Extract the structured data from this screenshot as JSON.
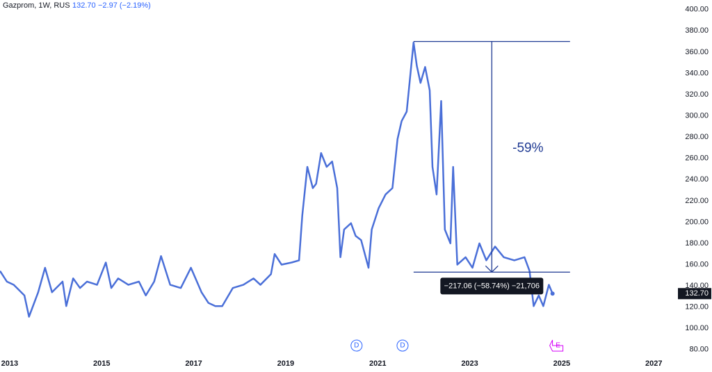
{
  "chart_data": {
    "type": "line",
    "title": "Gazprom, 1W, RUS",
    "last": "132.70",
    "change": "−2.97 (−2.19%)",
    "x": [
      2012.79,
      2012.94,
      2013.09,
      2013.32,
      2013.42,
      2013.62,
      2013.77,
      2013.92,
      2014.15,
      2014.23,
      2014.38,
      2014.53,
      2014.68,
      2014.9,
      2015.09,
      2015.21,
      2015.36,
      2015.58,
      2015.81,
      2015.96,
      2016.14,
      2016.29,
      2016.49,
      2016.72,
      2016.94,
      2017.17,
      2017.32,
      2017.47,
      2017.62,
      2017.85,
      2018.08,
      2018.3,
      2018.45,
      2018.68,
      2018.76,
      2018.91,
      2019.13,
      2019.29,
      2019.36,
      2019.47,
      2019.59,
      2019.66,
      2019.77,
      2019.89,
      2020.01,
      2020.12,
      2020.19,
      2020.27,
      2020.42,
      2020.52,
      2020.64,
      2020.8,
      2020.87,
      2021.02,
      2021.17,
      2021.32,
      2021.43,
      2021.52,
      2021.63,
      2021.78,
      2021.85,
      2021.93,
      2022.03,
      2022.13,
      2022.19,
      2022.28,
      2022.38,
      2022.46,
      2022.58,
      2022.64,
      2022.73,
      2022.91,
      2023.06,
      2023.21,
      2023.36,
      2023.55,
      2023.74,
      2023.97,
      2024.19,
      2024.3,
      2024.39,
      2024.5,
      2024.6,
      2024.72,
      2024.8
    ],
    "series": [
      {
        "name": "Gazprom",
        "color": "#4a6fd8",
        "values": [
          154,
          144,
          141,
          131,
          111,
          134,
          157,
          134,
          144,
          121,
          147,
          138,
          144,
          141,
          162,
          138,
          147,
          141,
          144,
          131,
          144,
          168,
          141,
          138,
          157,
          134,
          124,
          121,
          121,
          138,
          141,
          147,
          141,
          151,
          170,
          160,
          162,
          164,
          206,
          252,
          232,
          236,
          265,
          252,
          257,
          232,
          167,
          193,
          199,
          187,
          183,
          157,
          193,
          213,
          226,
          232,
          278,
          295,
          304,
          369,
          347,
          331,
          346,
          324,
          252,
          226,
          314,
          193,
          180,
          252,
          160,
          167,
          157,
          180,
          164,
          177,
          167,
          164,
          167,
          154,
          121,
          131,
          121,
          141,
          132.7
        ]
      }
    ],
    "last_price_label": "132.70",
    "xlim": [
      2012.79,
      2027.45
    ],
    "xticks": [
      2013,
      2015,
      2017,
      2019,
      2021,
      2023,
      2025,
      2027
    ],
    "ylim": [
      74,
      409
    ],
    "yticks": [
      {
        "value": 80,
        "label": "80.00"
      },
      {
        "value": 100,
        "label": "100.00"
      },
      {
        "value": 120,
        "label": "120.00"
      },
      {
        "value": 140,
        "label": "140.00"
      },
      {
        "value": 160,
        "label": "160.00"
      },
      {
        "value": 180,
        "label": "180.00"
      },
      {
        "value": 200,
        "label": "200.00"
      },
      {
        "value": 220,
        "label": "220.00"
      },
      {
        "value": 240,
        "label": "240.00"
      },
      {
        "value": 260,
        "label": "260.00"
      },
      {
        "value": 280,
        "label": "280.00"
      },
      {
        "value": 300,
        "label": "300.00"
      },
      {
        "value": 320,
        "label": "320.00"
      },
      {
        "value": 340,
        "label": "340.00"
      },
      {
        "value": 360,
        "label": "360.00"
      },
      {
        "value": 380,
        "label": "380.00"
      },
      {
        "value": 400,
        "label": "400.00"
      }
    ],
    "measure": {
      "x": [
        2021.78,
        2025.18
      ],
      "from": 370,
      "to": 152.94,
      "color": "#1f3a93",
      "label": "−217.06 (−58.74%) −21,706",
      "percent_label": "-59%"
    },
    "events": [
      {
        "x": 2020.54,
        "label": "D",
        "color": "#2962ff"
      },
      {
        "x": 2021.54,
        "label": "D",
        "color": "#2962ff"
      },
      {
        "x": 2024.92,
        "label": "E",
        "color": "#d500f9"
      }
    ]
  }
}
